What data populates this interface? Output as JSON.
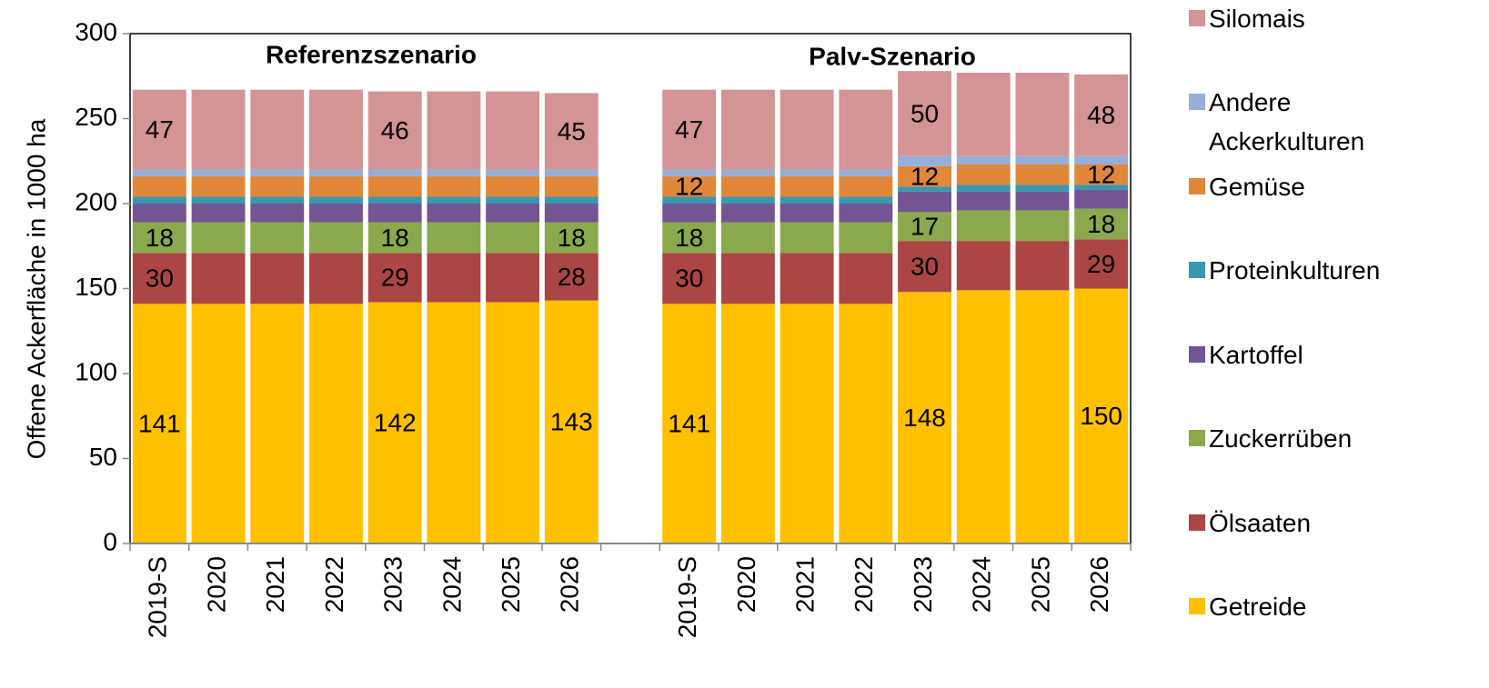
{
  "chart_data": {
    "type": "stacked_bar",
    "ylabel": "Offene Ackerfläche in 1000 ha",
    "annotations": [
      "Referenzszenario",
      "Palv-Szenario"
    ],
    "categories": [
      "2019-S",
      "2020",
      "2021",
      "2022",
      "2023",
      "2024",
      "2025",
      "2026",
      null,
      "2019-S",
      "2020",
      "2021",
      "2022",
      "2023",
      "2024",
      "2025",
      "2026"
    ],
    "ylim": [
      0,
      300
    ],
    "yticks": [
      0,
      50,
      100,
      150,
      200,
      250,
      300
    ],
    "series": [
      {
        "name": "Getreide",
        "color": "#ffc000",
        "values": [
          141,
          141,
          141,
          141,
          142,
          142,
          142,
          143,
          null,
          141,
          141,
          141,
          141,
          148,
          149,
          149,
          150
        ],
        "value_labels": [
          "141",
          null,
          null,
          null,
          "142",
          null,
          null,
          "143",
          null,
          "141",
          null,
          null,
          null,
          "148",
          null,
          null,
          "150"
        ]
      },
      {
        "name": "Ölsaaten",
        "color": "#ab4644",
        "values": [
          30,
          30,
          30,
          30,
          29,
          29,
          29,
          28,
          null,
          30,
          30,
          30,
          30,
          30,
          29,
          29,
          29
        ],
        "value_labels": [
          "30",
          null,
          null,
          null,
          "29",
          null,
          null,
          "28",
          null,
          "30",
          null,
          null,
          null,
          "30",
          null,
          null,
          "29"
        ]
      },
      {
        "name": "Zuckerrüben",
        "color": "#8aa84c",
        "values": [
          18,
          18,
          18,
          18,
          18,
          18,
          18,
          18,
          null,
          18,
          18,
          18,
          18,
          17,
          18,
          18,
          18
        ],
        "value_labels": [
          "18",
          null,
          null,
          null,
          "18",
          null,
          null,
          "18",
          null,
          "18",
          null,
          null,
          null,
          "17",
          null,
          null,
          "18"
        ]
      },
      {
        "name": "Kartoffel",
        "color": "#725592",
        "values": [
          11,
          11,
          11,
          11,
          11,
          11,
          11,
          11,
          null,
          11,
          11,
          11,
          11,
          12,
          11,
          11,
          11
        ]
      },
      {
        "name": "Proteinkulturen",
        "color": "#3a97ad",
        "values": [
          4,
          4,
          4,
          4,
          4,
          4,
          4,
          4,
          null,
          4,
          4,
          4,
          4,
          3,
          4,
          4,
          3
        ]
      },
      {
        "name": "Gemüse",
        "color": "#e0873a",
        "values": [
          12,
          12,
          12,
          12,
          12,
          12,
          12,
          12,
          null,
          12,
          12,
          12,
          12,
          12,
          12,
          12,
          12
        ],
        "value_labels": [
          null,
          null,
          null,
          null,
          null,
          null,
          null,
          null,
          null,
          "12",
          null,
          null,
          null,
          "12",
          null,
          null,
          "12"
        ]
      },
      {
        "name": "Andere Ackerkulturen",
        "color": "#95afd9",
        "values": [
          4,
          4,
          4,
          4,
          4,
          4,
          4,
          4,
          null,
          4,
          4,
          4,
          4,
          6,
          5,
          5,
          5
        ]
      },
      {
        "name": "Silomais",
        "color": "#d49395",
        "values": [
          47,
          47,
          47,
          47,
          46,
          46,
          46,
          45,
          null,
          47,
          47,
          47,
          47,
          50,
          49,
          49,
          48
        ],
        "value_labels": [
          "47",
          null,
          null,
          null,
          "46",
          null,
          null,
          "45",
          null,
          "47",
          null,
          null,
          null,
          "50",
          null,
          null,
          "48"
        ]
      }
    ]
  }
}
